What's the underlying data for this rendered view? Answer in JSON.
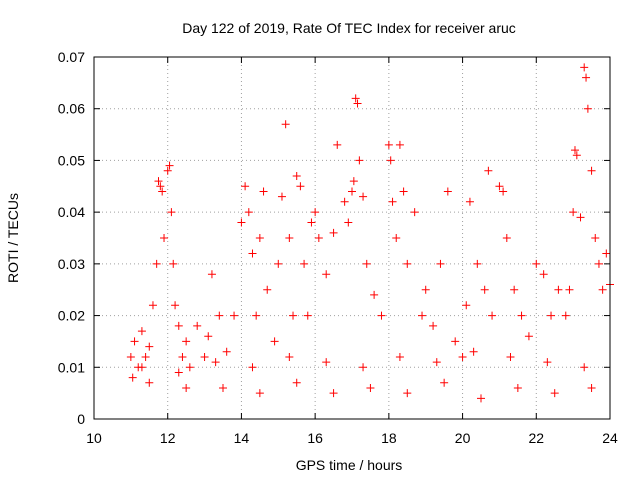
{
  "chart_data": {
    "type": "scatter",
    "title": "Day 122 of 2019, Rate Of TEC Index for receiver aruc",
    "xlabel": "GPS time / hours",
    "ylabel": "ROTI / TECUs",
    "xlim": [
      10,
      24
    ],
    "ylim": [
      0,
      0.07
    ],
    "grid": true,
    "marker": "+",
    "marker_color": "#ff0000",
    "x_ticks": [
      10,
      12,
      14,
      16,
      18,
      20,
      22,
      24
    ],
    "x_tick_labels": [
      "10",
      "12",
      "14",
      "16",
      "18",
      "20",
      "22",
      "24"
    ],
    "y_ticks": [
      0,
      0.01,
      0.02,
      0.03,
      0.04,
      0.05,
      0.06,
      0.07
    ],
    "y_tick_labels": [
      "0",
      "0.01",
      "0.02",
      "0.03",
      "0.04",
      "0.05",
      "0.06",
      "0.07"
    ],
    "series": [
      {
        "name": "ROTI",
        "x": [
          11.0,
          11.05,
          11.1,
          11.2,
          11.3,
          11.4,
          11.5,
          11.6,
          11.7,
          11.75,
          11.8,
          11.85,
          11.9,
          12.0,
          12.05,
          12.1,
          12.15,
          12.2,
          12.3,
          12.4,
          12.5,
          12.6,
          12.8,
          13.0,
          13.1,
          13.2,
          13.4,
          13.6,
          13.8,
          14.0,
          14.1,
          14.2,
          14.3,
          14.4,
          14.5,
          14.6,
          14.7,
          14.9,
          15.0,
          15.1,
          15.2,
          15.3,
          15.4,
          15.5,
          15.6,
          15.7,
          15.8,
          15.9,
          16.0,
          16.1,
          16.3,
          16.5,
          16.6,
          16.8,
          16.9,
          17.0,
          17.05,
          17.1,
          17.15,
          17.2,
          17.3,
          17.4,
          17.6,
          17.8,
          18.0,
          18.05,
          18.1,
          18.2,
          18.3,
          18.4,
          18.5,
          18.7,
          18.9,
          19.0,
          19.2,
          19.4,
          19.6,
          19.8,
          20.0,
          20.1,
          20.2,
          20.4,
          20.6,
          20.7,
          20.8,
          21.0,
          21.1,
          21.2,
          21.4,
          21.6,
          21.8,
          22.0,
          22.2,
          22.4,
          22.6,
          22.8,
          22.9,
          23.0,
          23.05,
          23.1,
          23.2,
          23.3,
          23.35,
          23.4,
          23.5,
          23.6,
          23.7,
          23.8,
          23.9,
          24.0,
          11.5,
          12.5,
          13.5,
          14.5,
          15.5,
          16.5,
          17.5,
          18.5,
          19.5,
          20.5,
          21.5,
          22.5,
          23.5,
          11.3,
          12.3,
          13.3,
          14.3,
          15.3,
          16.3,
          17.3,
          18.3,
          19.3,
          20.3,
          21.3,
          22.3,
          23.3
        ],
        "y": [
          0.012,
          0.008,
          0.015,
          0.01,
          0.017,
          0.012,
          0.014,
          0.022,
          0.03,
          0.046,
          0.045,
          0.044,
          0.035,
          0.048,
          0.049,
          0.04,
          0.03,
          0.022,
          0.018,
          0.012,
          0.015,
          0.01,
          0.018,
          0.012,
          0.016,
          0.028,
          0.02,
          0.013,
          0.02,
          0.038,
          0.045,
          0.04,
          0.032,
          0.02,
          0.035,
          0.044,
          0.025,
          0.015,
          0.03,
          0.043,
          0.057,
          0.035,
          0.02,
          0.047,
          0.045,
          0.03,
          0.02,
          0.038,
          0.04,
          0.035,
          0.028,
          0.036,
          0.053,
          0.042,
          0.038,
          0.044,
          0.046,
          0.062,
          0.061,
          0.05,
          0.043,
          0.03,
          0.024,
          0.02,
          0.053,
          0.05,
          0.042,
          0.035,
          0.053,
          0.044,
          0.03,
          0.04,
          0.02,
          0.025,
          0.018,
          0.03,
          0.044,
          0.015,
          0.012,
          0.022,
          0.042,
          0.03,
          0.025,
          0.048,
          0.02,
          0.045,
          0.044,
          0.035,
          0.025,
          0.02,
          0.016,
          0.03,
          0.028,
          0.02,
          0.025,
          0.02,
          0.025,
          0.04,
          0.052,
          0.051,
          0.039,
          0.068,
          0.066,
          0.06,
          0.048,
          0.035,
          0.03,
          0.025,
          0.032,
          0.026,
          0.007,
          0.006,
          0.006,
          0.005,
          0.007,
          0.005,
          0.006,
          0.005,
          0.007,
          0.004,
          0.006,
          0.005,
          0.006,
          0.01,
          0.009,
          0.011,
          0.01,
          0.012,
          0.011,
          0.01,
          0.012,
          0.011,
          0.013,
          0.012,
          0.011,
          0.01
        ]
      }
    ]
  }
}
